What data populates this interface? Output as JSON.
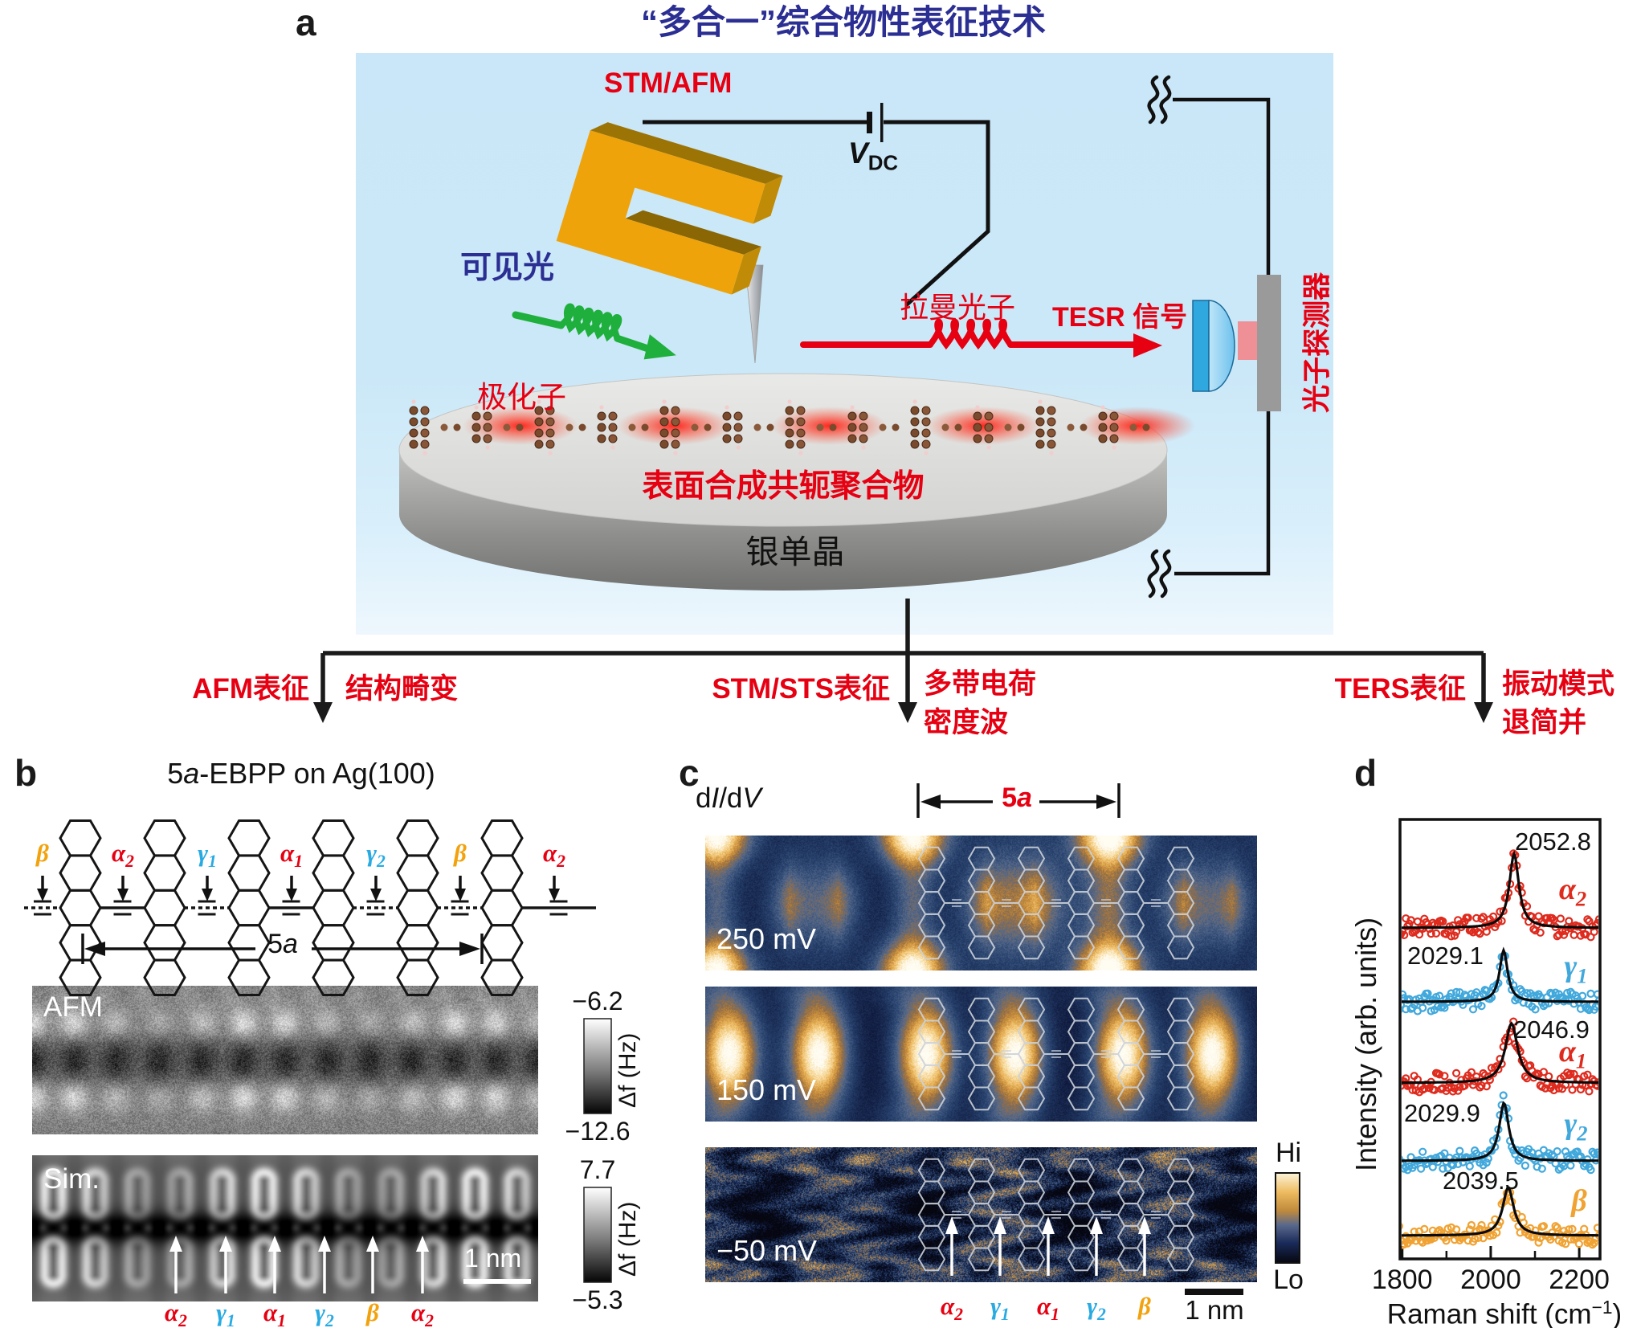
{
  "colors": {
    "title_blue": "#2b2e92",
    "accent_red": "#e60012",
    "site_red": "#e60012",
    "site_blue": "#29abe2",
    "site_orange": "#f2a20d",
    "scatter_red": "#de2b1e",
    "scatter_blue": "#41a8dc",
    "scatter_orange": "#f0a232",
    "panel_bg": "#c9e7f8",
    "gold": "#efa30b",
    "green": "#1faf3c"
  },
  "panel_a": {
    "label": "a",
    "title": "“多合一”综合物性表征技术",
    "stm_afm": "STM/AFM",
    "vdc_base": "V",
    "vdc_sub": "DC",
    "visible_light": "可见光",
    "polaron": "极化子",
    "raman_photon": "拉曼光子",
    "tesr_signal": "TESR 信号",
    "photon_detector": "光子探测器",
    "polymer": "表面合成共轭聚合物",
    "silver_crystal": "银单晶",
    "branches": [
      {
        "method": "AFM表征",
        "line1": "结构畸变",
        "line2": ""
      },
      {
        "method": "STM/STS表征",
        "line1": "多带电荷",
        "line2": "密度波"
      },
      {
        "method": "TERS表征",
        "line1": "振动模式",
        "line2": "退简并"
      }
    ]
  },
  "panel_b": {
    "label": "b",
    "title_pre": "5",
    "title_it": "a",
    "title_post": "-EBPP on Ag(100)",
    "span_pre": "5",
    "span_it": "a",
    "afm_label": "AFM",
    "sim_label": "Sim.",
    "afm_scale_top": "−6.2",
    "afm_scale_bottom": "−12.6",
    "afm_scale_unit": "Δf (Hz)",
    "sim_scale_top": "7.7",
    "sim_scale_bottom": "−5.3",
    "sim_scale_unit": "Δf (Hz)",
    "scalebar": "1 nm",
    "top_sites": [
      {
        "base": "β",
        "sub": "",
        "color": "#f2a20d"
      },
      {
        "base": "α",
        "sub": "2",
        "color": "#e60012"
      },
      {
        "base": "γ",
        "sub": "1",
        "color": "#29abe2"
      },
      {
        "base": "α",
        "sub": "1",
        "color": "#e60012"
      },
      {
        "base": "γ",
        "sub": "2",
        "color": "#29abe2"
      },
      {
        "base": "β",
        "sub": "",
        "color": "#f2a20d"
      },
      {
        "base": "α",
        "sub": "2",
        "color": "#e60012"
      }
    ],
    "bottom_sites": [
      {
        "base": "α",
        "sub": "2",
        "color": "#e60012"
      },
      {
        "base": "γ",
        "sub": "1",
        "color": "#29abe2"
      },
      {
        "base": "α",
        "sub": "1",
        "color": "#e60012"
      },
      {
        "base": "γ",
        "sub": "2",
        "color": "#29abe2"
      },
      {
        "base": "β",
        "sub": "",
        "color": "#f2a20d"
      },
      {
        "base": "α",
        "sub": "2",
        "color": "#e60012"
      }
    ]
  },
  "panel_c": {
    "label": "c",
    "map_label": {
      "p1": "d",
      "p2": "I",
      "p3": "/d",
      "p4": "V"
    },
    "span_pre": "5",
    "span_it": "a",
    "biases": [
      "250 mV",
      "150 mV",
      "−50 mV"
    ],
    "colorbar_hi": "Hi",
    "colorbar_lo": "Lo",
    "scalebar": "1 nm",
    "sites": [
      {
        "base": "α",
        "sub": "2",
        "color": "#e60012"
      },
      {
        "base": "γ",
        "sub": "1",
        "color": "#29abe2"
      },
      {
        "base": "α",
        "sub": "1",
        "color": "#e60012"
      },
      {
        "base": "γ",
        "sub": "2",
        "color": "#29abe2"
      },
      {
        "base": "β",
        "sub": "",
        "color": "#f2a20d"
      }
    ]
  },
  "panel_d": {
    "label": "d",
    "ylabel": "Intensity (arb. units)",
    "xlabel_pre": "Raman shift (cm",
    "xlabel_sup": "−1",
    "xlabel_post": ")"
  },
  "chart_data": {
    "type": "line",
    "title": "",
    "xlabel": "Raman shift (cm⁻¹)",
    "ylabel": "Intensity (arb. units)",
    "xlim": [
      1795,
      2247
    ],
    "x_ticks": [
      1800,
      2000,
      2200
    ],
    "x_minor_ticks": [
      1900,
      2100
    ],
    "grid": false,
    "stacking": "offset",
    "legend_position": "right-inline",
    "series": [
      {
        "name": "α2",
        "label_base": "α",
        "label_sub": "2",
        "color": "#de2b1e",
        "peak_center": 2052.8,
        "peak_label": "2052.8",
        "curve": "lorentzian-fit",
        "points": "scatter"
      },
      {
        "name": "γ1",
        "label_base": "γ",
        "label_sub": "1",
        "color": "#41a8dc",
        "peak_center": 2029.1,
        "peak_label": "2029.1",
        "curve": "lorentzian-fit",
        "points": "scatter"
      },
      {
        "name": "α1",
        "label_base": "α",
        "label_sub": "1",
        "color": "#de2b1e",
        "peak_center": 2046.9,
        "peak_label": "2046.9",
        "curve": "lorentzian-fit",
        "points": "scatter"
      },
      {
        "name": "γ2",
        "label_base": "γ",
        "label_sub": "2",
        "color": "#41a8dc",
        "peak_center": 2029.9,
        "peak_label": "2029.9",
        "curve": "lorentzian-fit",
        "points": "scatter"
      },
      {
        "name": "β",
        "label_base": "β",
        "label_sub": "",
        "color": "#f0a232",
        "peak_center": 2039.5,
        "peak_label": "2039.5",
        "curve": "lorentzian-fit",
        "points": "scatter"
      }
    ]
  }
}
